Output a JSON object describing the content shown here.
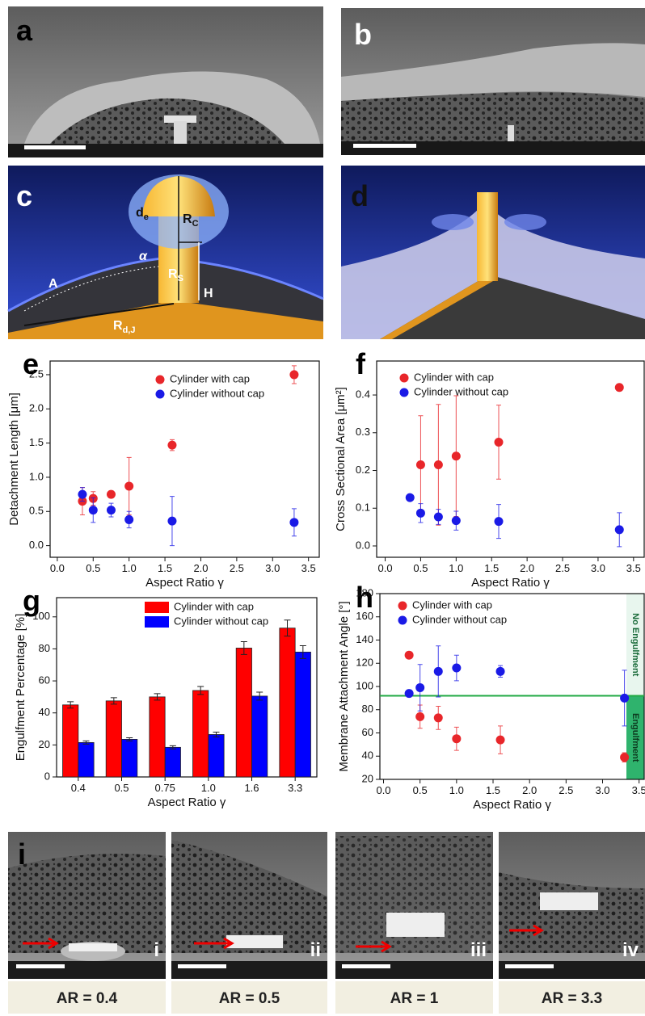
{
  "panel_labels": [
    "a",
    "b",
    "c",
    "d",
    "i"
  ],
  "schematic_labels": {
    "de": {
      "main": "d",
      "sub": "e"
    },
    "rc": {
      "main": "R",
      "sub": "C"
    },
    "alpha": "α",
    "area": "A",
    "rs": {
      "main": "R",
      "sub": "S"
    },
    "height": "H",
    "rdj": {
      "main": "R",
      "sub": "d,J"
    }
  },
  "sem_images": [
    {
      "label": "i",
      "caption": "AR = 0.4"
    },
    {
      "label": "ii",
      "caption": "AR = 0.5"
    },
    {
      "label": "iii",
      "caption": "AR = 1"
    },
    {
      "label": "iv",
      "caption": "AR = 3.3"
    }
  ],
  "chart_data": [
    {
      "type": "scatter",
      "label": "e",
      "xlabel": "Aspect Ratio γ",
      "ylabel": "Detachment Length [μm]",
      "xlim": [
        -0.1,
        3.65
      ],
      "ylim": [
        -0.17,
        2.7
      ],
      "xticks": [
        {
          "value": 0,
          "label": "0.0"
        },
        0.5,
        {
          "value": 1,
          "label": "1.0"
        },
        1.5,
        {
          "value": 2,
          "label": "2.0"
        },
        2.5,
        {
          "value": 3,
          "label": "3.0"
        },
        3.5
      ],
      "yticks": [
        {
          "value": 0,
          "label": "0.0"
        },
        0.5,
        {
          "value": 1,
          "label": "1.0"
        },
        1.5,
        {
          "value": 2,
          "label": "2.0"
        },
        2.5
      ],
      "series": [
        {
          "name": "Cylinder with cap",
          "color": "#e8262a",
          "x": [
            0.35,
            0.5,
            0.75,
            1.0,
            1.6,
            3.3
          ],
          "values": [
            0.65,
            0.69,
            0.75,
            0.87,
            1.47,
            2.5
          ],
          "errors": [
            0.2,
            0.1,
            0.05,
            0.42,
            0.08,
            0.13
          ]
        },
        {
          "name": "Cylinder without cap",
          "color": "#1a1ae6",
          "x": [
            0.35,
            0.5,
            0.75,
            1.0,
            1.6,
            3.3
          ],
          "values": [
            0.75,
            0.52,
            0.52,
            0.38,
            0.36,
            0.34
          ],
          "errors": [
            0.1,
            0.18,
            0.1,
            0.12,
            0.36,
            0.2
          ]
        }
      ]
    },
    {
      "type": "scatter",
      "label": "f",
      "xlabel": "Aspect Ratio γ",
      "ylabel": "Cross Sectional Area [μm²]",
      "xlim": [
        -0.12,
        3.65
      ],
      "ylim": [
        -0.03,
        0.49
      ],
      "xticks": [
        {
          "value": 0,
          "label": "0.0"
        },
        0.5,
        {
          "value": 1,
          "label": "1.0"
        },
        1.5,
        {
          "value": 2,
          "label": "2.0"
        },
        2.5,
        {
          "value": 3,
          "label": "3.0"
        },
        3.5
      ],
      "yticks": [
        {
          "value": 0,
          "label": "0.0"
        },
        0.1,
        0.2,
        0.3,
        0.4
      ],
      "series": [
        {
          "name": "Cylinder with cap",
          "color": "#e8262a",
          "x": [
            0.5,
            0.75,
            1.0,
            1.6,
            3.3
          ],
          "values": [
            0.215,
            0.215,
            0.238,
            0.275,
            0.42
          ],
          "errors": [
            0.13,
            0.16,
            0.16,
            0.098,
            0.005
          ]
        },
        {
          "name": "Cylinder without cap",
          "color": "#1a1ae6",
          "x": [
            0.35,
            0.5,
            0.75,
            1.0,
            1.6,
            3.3
          ],
          "values": [
            0.128,
            0.087,
            0.077,
            0.067,
            0.065,
            0.043
          ],
          "errors": [
            0.005,
            0.025,
            0.02,
            0.025,
            0.045,
            0.045
          ]
        }
      ]
    },
    {
      "type": "bar",
      "label": "g",
      "xlabel": "Aspect Ratio γ",
      "ylabel": "Engulfment Percentage [%]",
      "categories": [
        "0.4",
        "0.5",
        "0.75",
        "1.0",
        "1.6",
        "3.3"
      ],
      "ylim": [
        0,
        112
      ],
      "yticks": [
        0,
        20,
        40,
        60,
        80,
        100
      ],
      "series": [
        {
          "name": "Cylinder with cap",
          "color": "#ff0000",
          "values": [
            45,
            47.5,
            50,
            54,
            80.5,
            93
          ],
          "errors": [
            2,
            2,
            2,
            2.5,
            4,
            5
          ]
        },
        {
          "name": "Cylinder without cap",
          "color": "#0000ff",
          "values": [
            21.5,
            23.5,
            18.5,
            26.5,
            50.5,
            78
          ],
          "errors": [
            1,
            1,
            1,
            1.5,
            2.5,
            4
          ]
        }
      ]
    },
    {
      "type": "scatter",
      "label": "h",
      "xlabel": "Aspect Ratio γ",
      "ylabel": "Membrane Attachment Angle [°]",
      "xlim": [
        -0.05,
        3.57
      ],
      "ylim": [
        20,
        180
      ],
      "xticks": [
        {
          "value": 0,
          "label": "0.0"
        },
        0.5,
        {
          "value": 1,
          "label": "1.0"
        },
        1.5,
        {
          "value": 2,
          "label": "2.0"
        },
        2.5,
        {
          "value": 3,
          "label": "3.0"
        },
        3.5
      ],
      "yticks": [
        20,
        40,
        60,
        80,
        100,
        120,
        140,
        160,
        180
      ],
      "threshold": 92,
      "threshold_color": "#22aa44",
      "regions": [
        "No Engulfment",
        "Engulfment"
      ],
      "series": [
        {
          "name": "Cylinder with cap",
          "color": "#e8262a",
          "x": [
            0.35,
            0.5,
            0.75,
            1.0,
            1.6,
            3.3
          ],
          "values": [
            127,
            74,
            73,
            55,
            54,
            39
          ],
          "errors": [
            0,
            10,
            10,
            10,
            12,
            4
          ]
        },
        {
          "name": "Cylinder without cap",
          "color": "#1a1ae6",
          "x": [
            0.35,
            0.5,
            0.75,
            1.0,
            1.6,
            3.3
          ],
          "values": [
            94,
            99,
            113,
            116,
            113,
            90
          ],
          "errors": [
            3,
            20,
            22,
            11,
            5,
            24
          ]
        }
      ]
    }
  ]
}
